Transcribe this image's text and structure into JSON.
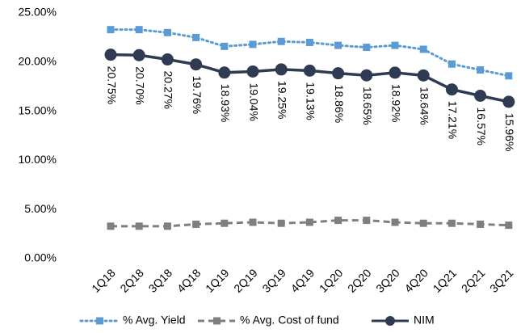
{
  "chart_data": {
    "type": "line",
    "categories": [
      "1Q18",
      "2Q18",
      "3Q18",
      "4Q18",
      "1Q19",
      "2Q19",
      "3Q19",
      "4Q19",
      "1Q20",
      "2Q20",
      "3Q20",
      "4Q20",
      "1Q21",
      "2Q21",
      "3Q21"
    ],
    "series": [
      {
        "name": "% Avg. Yield",
        "color": "#5b9bd5",
        "style": "dotted",
        "marker": "square",
        "values": [
          23.3,
          23.3,
          23.0,
          22.5,
          21.6,
          21.8,
          22.1,
          22.0,
          21.7,
          21.5,
          21.7,
          21.3,
          19.8,
          19.2,
          18.6
        ]
      },
      {
        "name": "% Avg. Cost of fund",
        "color": "#7f7f7f",
        "style": "dashed",
        "marker": "square",
        "values": [
          3.3,
          3.3,
          3.3,
          3.5,
          3.6,
          3.7,
          3.6,
          3.7,
          3.9,
          3.9,
          3.7,
          3.6,
          3.6,
          3.5,
          3.4
        ]
      },
      {
        "name": "NIM",
        "color": "#2e3b52",
        "style": "solid",
        "marker": "circle",
        "values": [
          20.75,
          20.7,
          20.27,
          19.76,
          18.93,
          19.04,
          19.25,
          19.13,
          18.86,
          18.65,
          18.92,
          18.64,
          17.21,
          16.57,
          15.96
        ],
        "value_labels": [
          "20.75%",
          "20.70%",
          "20.27%",
          "19.76%",
          "18.93%",
          "19.04%",
          "19.25%",
          "19.13%",
          "18.86%",
          "18.65%",
          "18.92%",
          "18.64%",
          "17.21%",
          "16.57%",
          "15.96%"
        ]
      }
    ],
    "ylim": [
      0,
      25
    ],
    "yticks": [
      {
        "value": 0,
        "label": "0.00%"
      },
      {
        "value": 5,
        "label": "5.00%"
      },
      {
        "value": 10,
        "label": "10.00%"
      },
      {
        "value": 15,
        "label": "15.00%"
      },
      {
        "value": 20,
        "label": "20.00%"
      },
      {
        "value": 25,
        "label": "25.00%"
      }
    ],
    "grid": false,
    "legend": "bottom"
  }
}
